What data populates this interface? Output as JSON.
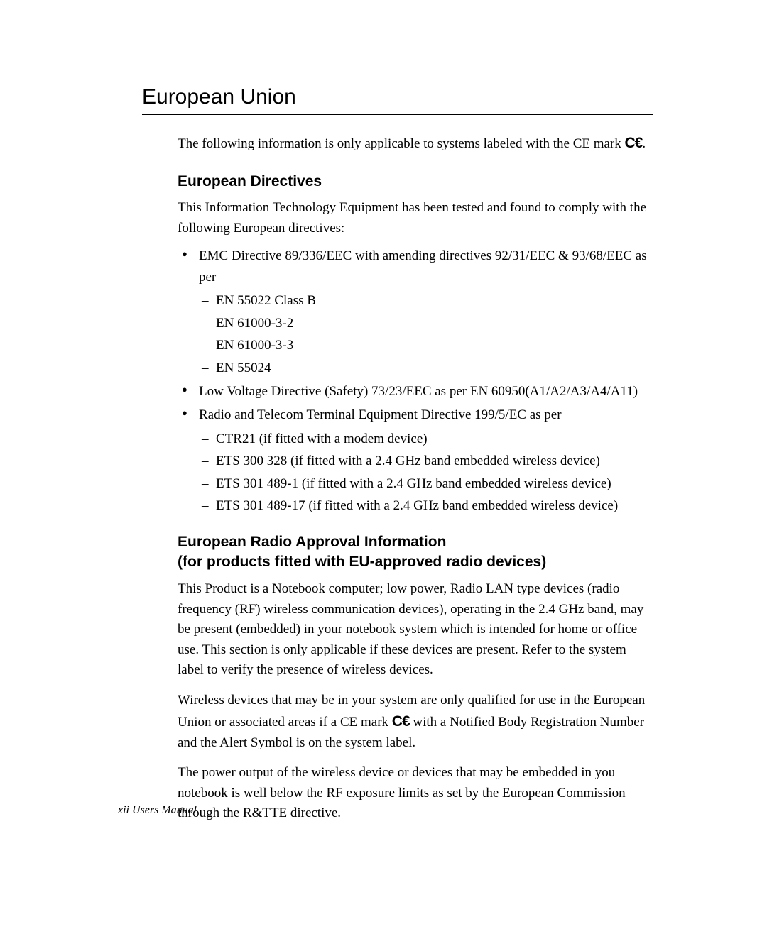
{
  "main_heading": "European Union",
  "intro_text": "The following information is only applicable to systems labeled with the CE mark",
  "ce_mark_symbol": "C€",
  "period": ".",
  "section1": {
    "heading": "European Directives",
    "intro": "This Information Technology Equipment has been tested and found to comply with the following European directives:",
    "bullet1": "EMC Directive 89/336/EEC with amending directives 92/31/EEC & 93/68/EEC as per",
    "bullet1_sub1": "EN 55022 Class B",
    "bullet1_sub2": "EN 61000-3-2",
    "bullet1_sub3": "EN 61000-3-3",
    "bullet1_sub4": "EN 55024",
    "bullet2": "Low Voltage Directive (Safety) 73/23/EEC as per EN 60950(A1/A2/A3/A4/A11)",
    "bullet3": "Radio and Telecom Terminal Equipment Directive 199/5/EC as per",
    "bullet3_sub1": "CTR21 (if fitted with a modem device)",
    "bullet3_sub2": "ETS 300 328 (if fitted with a 2.4 GHz band embedded wireless device)",
    "bullet3_sub3": "ETS 301 489-1 (if fitted with a 2.4 GHz band embedded wireless device)",
    "bullet3_sub4": "ETS 301 489-17 (if fitted with a 2.4 GHz band embedded wireless device)"
  },
  "section2": {
    "heading_line1": "European Radio Approval Information",
    "heading_line2": "(for products fitted with EU-approved radio devices)",
    "para1": "This Product is a Notebook computer; low power, Radio LAN type devices (radio frequency (RF) wireless communication devices), operating in the 2.4 GHz band, may be present (embedded) in your notebook system which is intended for home or office use. This section is only applicable if these devices are present. Refer to the system label to verify the presence of wireless devices.",
    "para2_part1": "Wireless devices that may be in your system are only qualified for use in the European Union or associated areas if a CE mark ",
    "para2_part2": " with a Notified Body Registration Number and the Alert Symbol is on the system label.",
    "para3": "The power output of the wireless device or devices that may be embedded in you notebook is well below the RF exposure limits as set by the European Commission through the R&TTE directive."
  },
  "footer": "xii  Users Manual"
}
